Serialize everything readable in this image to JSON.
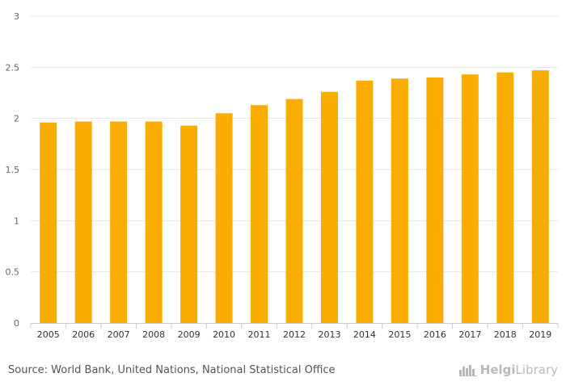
{
  "chart_data": {
    "type": "bar",
    "categories": [
      "2005",
      "2006",
      "2007",
      "2008",
      "2009",
      "2010",
      "2011",
      "2012",
      "2013",
      "2014",
      "2015",
      "2016",
      "2017",
      "2018",
      "2019"
    ],
    "values": [
      1.96,
      1.97,
      1.97,
      1.97,
      1.93,
      2.05,
      2.13,
      2.19,
      2.26,
      2.37,
      2.39,
      2.4,
      2.43,
      2.45,
      2.47
    ],
    "title": "",
    "xlabel": "",
    "ylabel": "",
    "ylim": [
      0,
      3
    ],
    "yticks": [
      0,
      0.5,
      1,
      1.5,
      2,
      2.5,
      3
    ],
    "ytick_labels": [
      "0",
      "0.5",
      "1",
      "1.5",
      "2",
      "2.5",
      "3"
    ],
    "grid": true,
    "bar_color": "#f9ad00",
    "grid_color": "#e6e6e6"
  },
  "footer": {
    "source": "Source: World Bank, United Nations, National Statistical Office",
    "brand_part1": "Helgi",
    "brand_part2": "Library",
    "brand_icon": "city-skyline-icon"
  }
}
